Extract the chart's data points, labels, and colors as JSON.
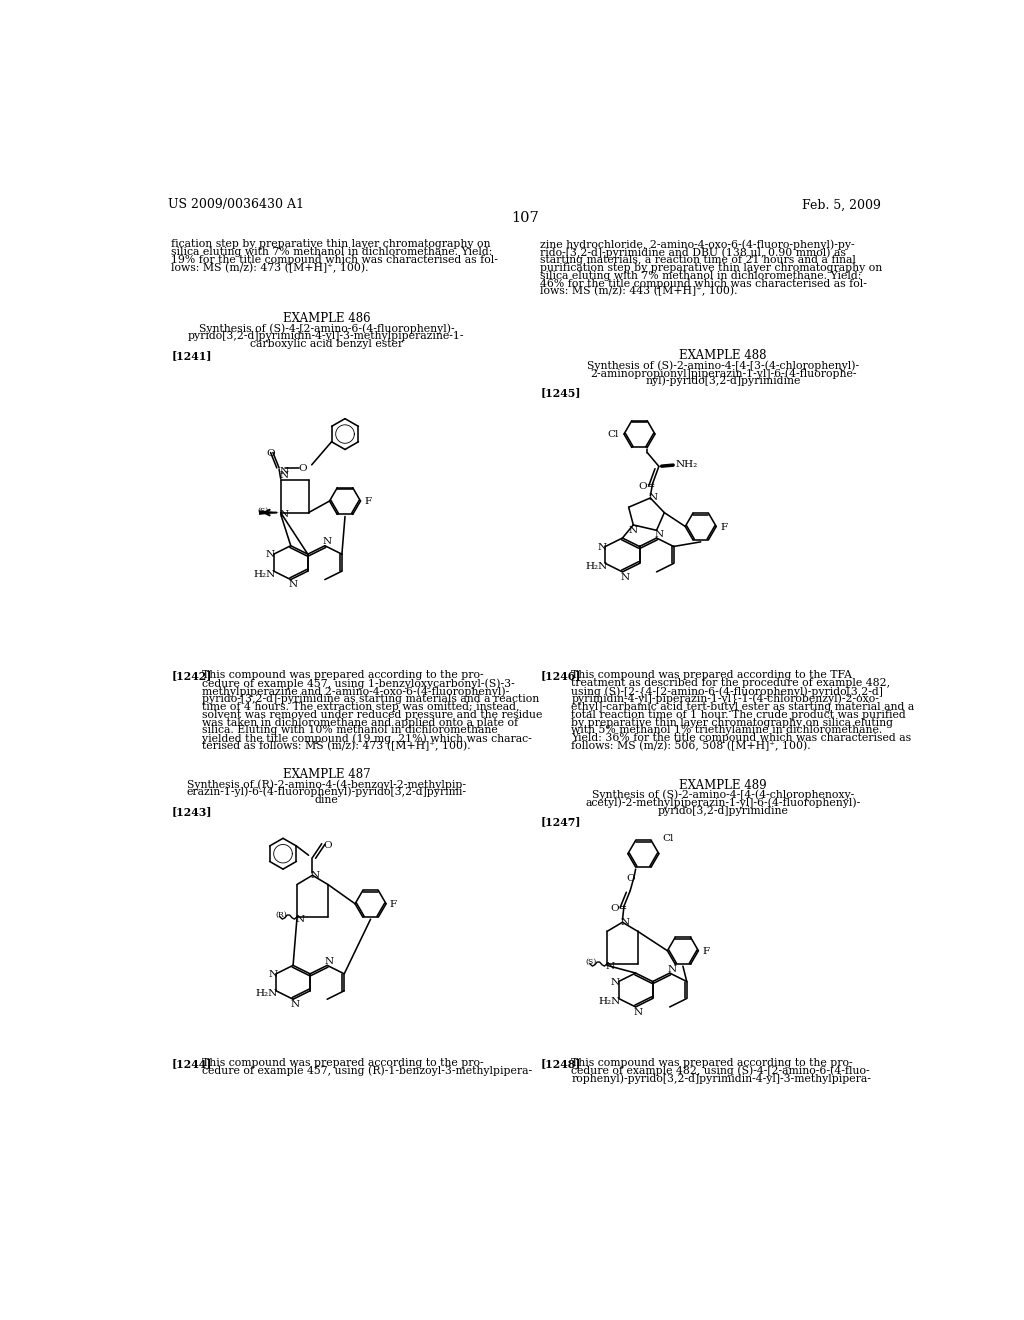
{
  "background_color": "#ffffff",
  "header_left": "US 2009/0036430 A1",
  "header_right": "Feb. 5, 2009",
  "page_number": "107",
  "font_size_body": 7.8,
  "font_size_example": 8.5,
  "font_size_header": 9.0,
  "font_size_pagenum": 10.5,
  "text_color": "#000000",
  "left_top_text": "fication step by preparative thin layer chromatography on\nsilica eluting with 7% methanol in dichloromethane. Yield:\n19% for the title compound which was characterised as fol-\nlows: MS (m/z): 473 ([M+H]⁺, 100).",
  "right_top_text": "zine hydrochloride, 2-amino-4-oxo-6-(4-fluoro-phenyl)-py-\nrido-[3,2-d]-pyrimidine and DBU (138 μl, 0.90 mmol) as\nstarting materials, a reaction time of 21 hours and a final\npurification step by preparative thin layer chromatography on\nsilica eluting with 7% methanol in dichloromethane. Yield:\n46% for the title compound which was characterised as fol-\nlows: MS (m/z): 443 ([M+H]⁺, 100).",
  "example486_title": "EXAMPLE 486",
  "example486_subtitle": "Synthesis of (S)-4-[2-amino-6-(4-fluorophenyl)-\npyrido[3,2-d]pyrimidin-4-yl]-3-methylpiperazine-1-\ncarboxylic acid benzyl ester",
  "label1241": "[1241]",
  "label1242": "[1242]",
  "text1242": "This compound was prepared according to the pro-\ncedure of example 457, using 1-benzyloxycarbonyl-(S)-3-\nmethylpiperazine and 2-amino-4-oxo-6-(4-fluorophenyl)-\npyrido-[3,2-d]-pyrimidine as starting materials and a reaction\ntime of 4 hours. The extraction step was omitted; instead,\nsolvent was removed under reduced pressure and the residue\nwas taken in dichloromethane and applied onto a plate of\nsilica. Eluting with 10% methanol in dichloromethane\nyielded the title compound (19 mg, 21%) which was charac-\nterised as follows: MS (m/z): 473 ([M+H]⁺, 100).",
  "example487_title": "EXAMPLE 487",
  "example487_subtitle": "Synthesis of (R)-2-amino-4-(4-benzoyl-2-methylpip-\nerazin-1-yl)-6-(4-fluorophenyl)-pyrido[3,2-d]pyrimi-\ndine",
  "label1243": "[1243]",
  "label1244": "[1244]",
  "text1244": "This compound was prepared according to the pro-\ncedure of example 457, using (R)-1-benzoyl-3-methylpipera-",
  "example488_title": "EXAMPLE 488",
  "example488_subtitle": "Synthesis of (S)-2-amino-4-[4-[3-(4-chlorophenyl)-\n2-aminopropionyl]piperazin-1-yl]-6-(4-fluorophe-\nnyl)-pyrido[3,2-d]pyrimidine",
  "label1245": "[1245]",
  "label1246": "[1246]",
  "text1246": "This compound was prepared according to the TFA\ntreatment as described for the procedure of example 482,\nusing (S)-[2-{4-[2-amino-6-(4-fluorophenyl)-pyrido[3,2-d]\npyrimidin-4-yl]-piperazin-1-yl}-1-(4-chlorobenzyl)-2-oxo-\nethyl]-carbamic acid tert-butyl ester as starting material and a\ntotal reaction time of 1 hour. The crude product was purified\nby preparative thin layer chromatography on silica eluting\nwith 5% methanol 1% triethylamine in dichloromethane.\nYield: 36% for the title compound which was characterised as\nfollows: MS (m/z): 506, 508 ([M+H]⁺, 100).",
  "example489_title": "EXAMPLE 489",
  "example489_subtitle": "Synthesis of (S)-2-amino-4-[4-(4-chlorophenoxy-\nacetyl)-2-methylpiperazin-1-yl]-6-(4-fluorophenyl)-\npyrido[3,2-d]pyrimidine",
  "label1247": "[1247]",
  "label1248": "[1248]",
  "text1248": "This compound was prepared according to the pro-\ncedure of example 482, using (S)-4-[2-amino-6-(4-fluo-\nrophenyl)-pyrido[3,2-d]pyrimidin-4-yl]-3-methylpipera-"
}
